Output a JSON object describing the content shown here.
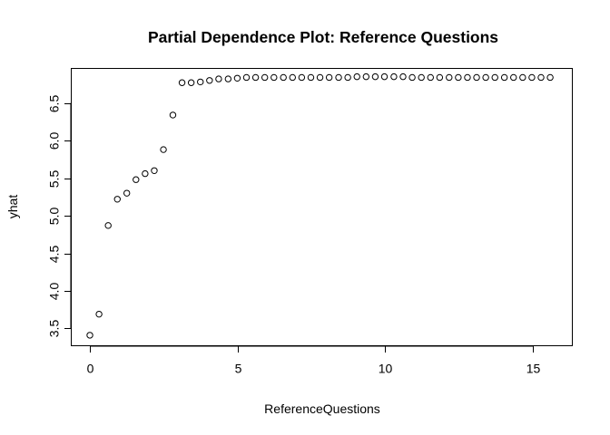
{
  "chart_data": {
    "type": "scatter",
    "title": "Partial Dependence Plot: Reference Questions",
    "xlabel": "ReferenceQuestions",
    "ylabel": "yhat",
    "xlim": [
      -0.63,
      16.33
    ],
    "ylim": [
      3.27,
      6.96
    ],
    "xticks": [
      0,
      5,
      10,
      15
    ],
    "yticks": [
      3.5,
      4.0,
      4.5,
      5.0,
      5.5,
      6.0,
      6.5
    ],
    "xtick_labels": [
      "0",
      "5",
      "10",
      "15"
    ],
    "ytick_labels": [
      "3.5",
      "4.0",
      "4.5",
      "5.0",
      "5.5",
      "6.0",
      "6.5"
    ],
    "grid": false,
    "marker": "open-circle",
    "x": [
      0,
      0.31,
      0.62,
      0.93,
      1.25,
      1.56,
      1.87,
      2.18,
      2.49,
      2.81,
      3.12,
      3.43,
      3.74,
      4.05,
      4.36,
      4.68,
      4.99,
      5.3,
      5.61,
      5.92,
      6.23,
      6.55,
      6.86,
      7.17,
      7.48,
      7.79,
      8.1,
      8.42,
      8.73,
      9.04,
      9.35,
      9.66,
      9.97,
      10.29,
      10.6,
      10.91,
      11.22,
      11.53,
      11.84,
      12.16,
      12.47,
      12.78,
      13.09,
      13.4,
      13.71,
      14.03,
      14.34,
      14.65,
      14.96,
      15.27,
      15.58
    ],
    "y": [
      3.41,
      3.69,
      4.87,
      5.22,
      5.3,
      5.48,
      5.56,
      5.6,
      5.88,
      6.34,
      6.77,
      6.77,
      6.78,
      6.8,
      6.82,
      6.82,
      6.83,
      6.84,
      6.84,
      6.84,
      6.84,
      6.84,
      6.84,
      6.84,
      6.84,
      6.84,
      6.84,
      6.84,
      6.84,
      6.85,
      6.85,
      6.85,
      6.85,
      6.85,
      6.85,
      6.84,
      6.84,
      6.84,
      6.84,
      6.84,
      6.84,
      6.84,
      6.84,
      6.84,
      6.84,
      6.84,
      6.84,
      6.84,
      6.84,
      6.84,
      6.84
    ]
  }
}
